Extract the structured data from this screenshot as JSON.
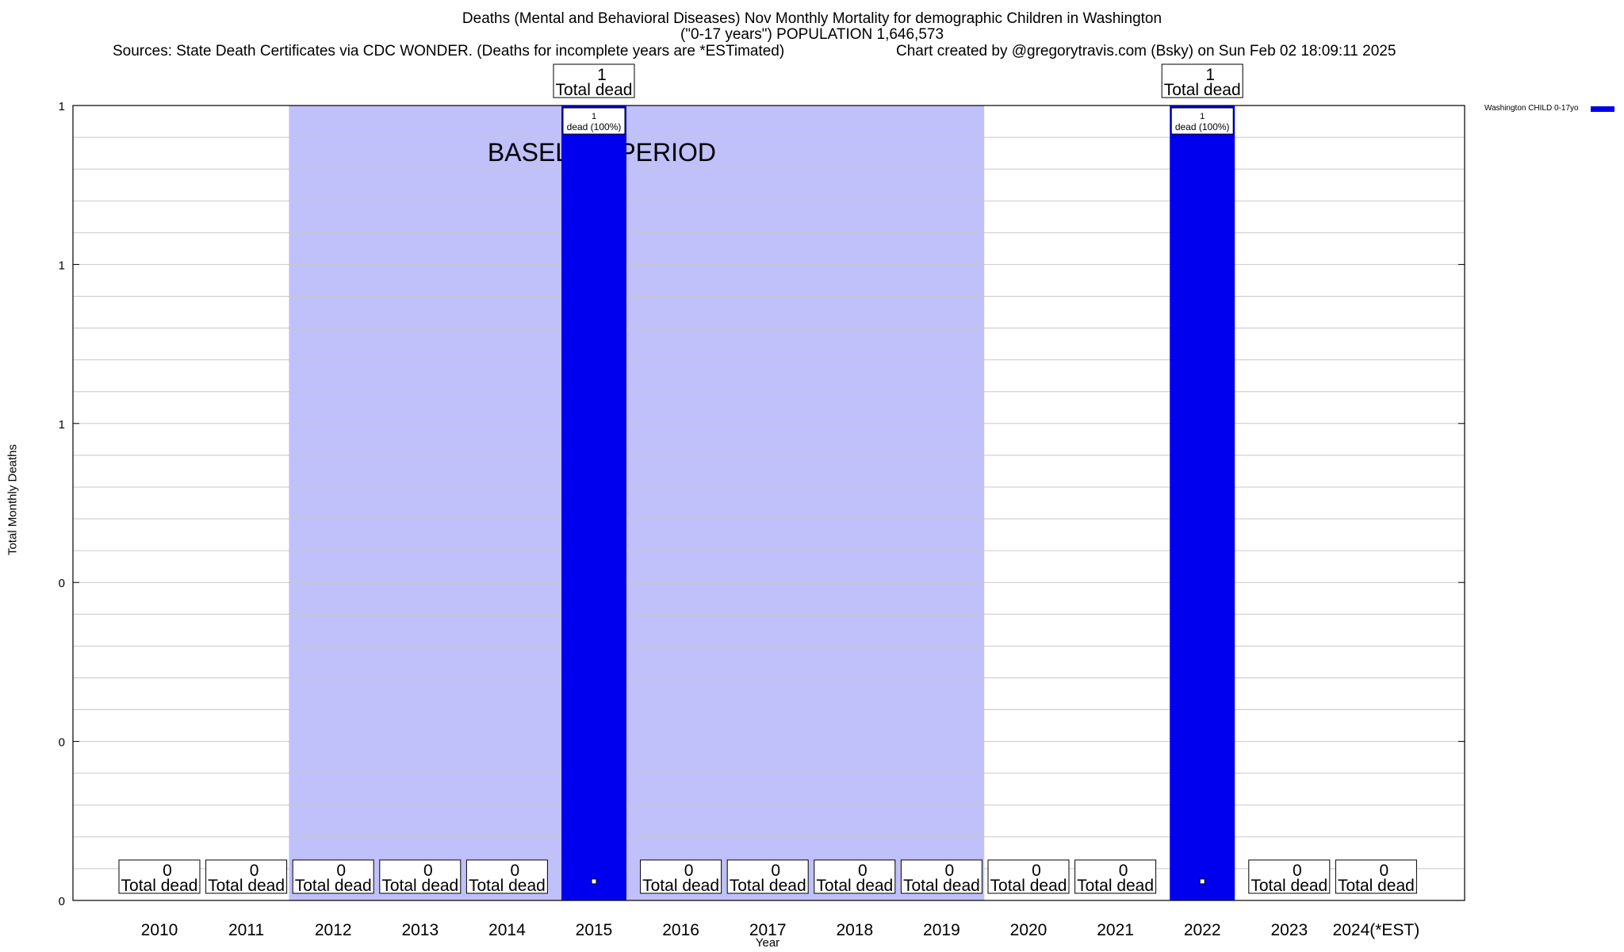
{
  "header": {
    "title_line1": "Deaths (Mental and Behavioral Diseases) Nov Monthly Mortality for demographic Children in Washington",
    "title_line2": "(\"0-17 years\") POPULATION 1,646,573",
    "sources": "Sources: State Death Certificates via CDC WONDER. (Deaths for incomplete years are *ESTimated)",
    "credit": "Chart created by @gregorytravis.com (Bsky) on Sun Feb 02 18:09:11 2025"
  },
  "chart_data": {
    "type": "bar",
    "categories": [
      "2010",
      "2011",
      "2012",
      "2013",
      "2014",
      "2015",
      "2016",
      "2017",
      "2018",
      "2019",
      "2020",
      "2021",
      "2022",
      "2023",
      "2024(*EST)"
    ],
    "series": [
      {
        "name": "Washington CHILD 0-17yo",
        "values": [
          0,
          0,
          0,
          0,
          0,
          1,
          0,
          0,
          0,
          0,
          0,
          0,
          1,
          0,
          0
        ],
        "color": "#0000ee"
      }
    ],
    "ylim": [
      0,
      1
    ],
    "ytick_labels": [
      "0",
      "0",
      "0",
      "1",
      "1",
      "1"
    ],
    "xlabel": "Year",
    "ylabel": "Total Monthly Deaths",
    "total_label_suffix": "Total dead",
    "bar_label_suffix": "dead (100%)",
    "baseline": {
      "label": "BASELINE PERIOD",
      "from": "2012",
      "to": "2019",
      "color": "#c0c0fb"
    },
    "grid": true,
    "legend_position": "top-right"
  }
}
